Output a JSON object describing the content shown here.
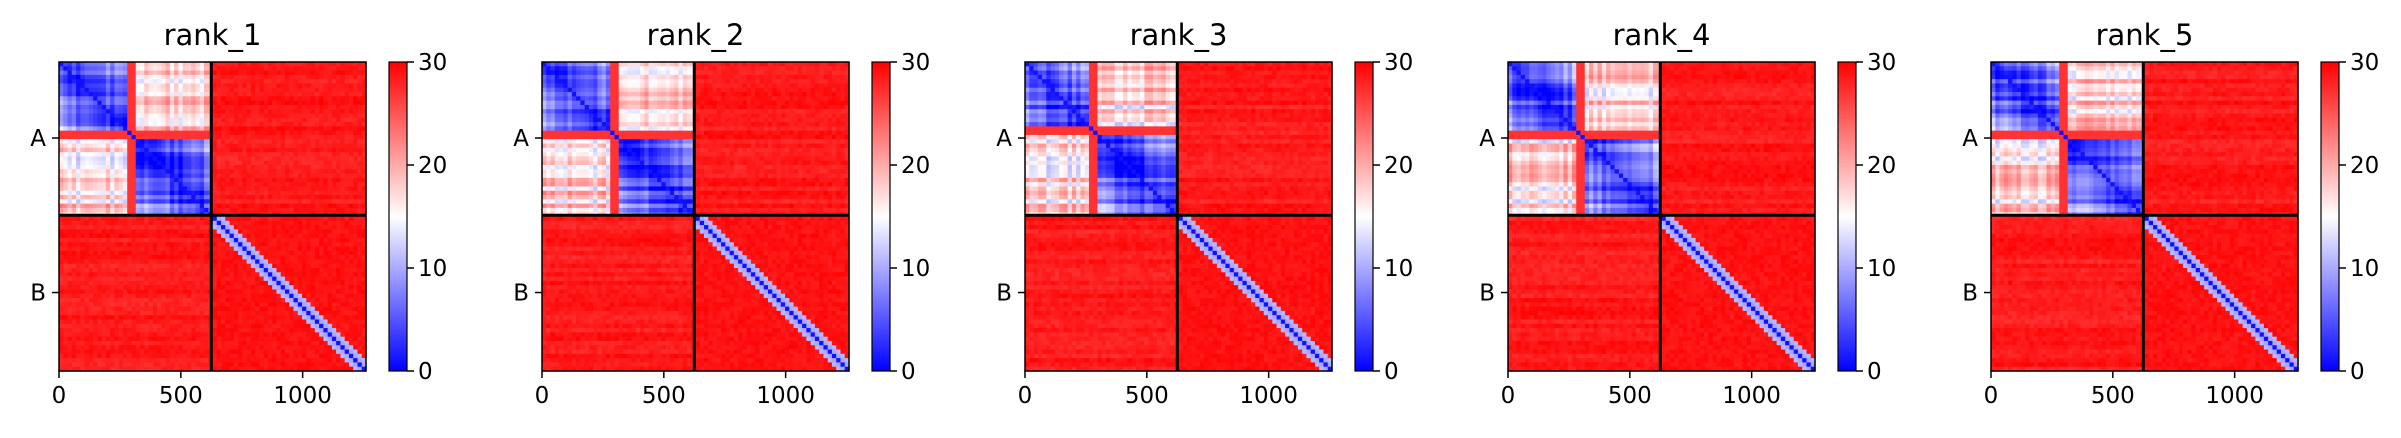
{
  "chart_data": [
    {
      "type": "heatmap",
      "title": "rank_1",
      "colormap": [
        "#0000ff",
        "#ffffff",
        "#ff0000"
      ],
      "value_range": [
        0,
        30
      ],
      "colorbar_ticks": [
        "0",
        "10",
        "20",
        "30"
      ],
      "x_ticks": [
        {
          "value": 0,
          "label": "0"
        },
        {
          "value": 500,
          "label": "500"
        },
        {
          "value": 1000,
          "label": "1000"
        }
      ],
      "y_ticks": [
        {
          "value": 310,
          "label": "A"
        },
        {
          "value": 940,
          "label": "B"
        }
      ],
      "xlim": [
        0,
        1260
      ],
      "chain_boundary": 625,
      "chain_a_split": 290,
      "n_residues": 1260
    },
    {
      "type": "heatmap",
      "title": "rank_2",
      "colormap": [
        "#0000ff",
        "#ffffff",
        "#ff0000"
      ],
      "value_range": [
        0,
        30
      ],
      "colorbar_ticks": [
        "0",
        "10",
        "20",
        "30"
      ],
      "x_ticks": [
        {
          "value": 0,
          "label": "0"
        },
        {
          "value": 500,
          "label": "500"
        },
        {
          "value": 1000,
          "label": "1000"
        }
      ],
      "y_ticks": [
        {
          "value": 310,
          "label": "A"
        },
        {
          "value": 940,
          "label": "B"
        }
      ],
      "xlim": [
        0,
        1260
      ],
      "chain_boundary": 625,
      "chain_a_split": 300,
      "n_residues": 1260
    },
    {
      "type": "heatmap",
      "title": "rank_3",
      "colormap": [
        "#0000ff",
        "#ffffff",
        "#ff0000"
      ],
      "value_range": [
        0,
        30
      ],
      "colorbar_ticks": [
        "0",
        "10",
        "20",
        "30"
      ],
      "x_ticks": [
        {
          "value": 0,
          "label": "0"
        },
        {
          "value": 500,
          "label": "500"
        },
        {
          "value": 1000,
          "label": "1000"
        }
      ],
      "y_ticks": [
        {
          "value": 310,
          "label": "A"
        },
        {
          "value": 940,
          "label": "B"
        }
      ],
      "xlim": [
        0,
        1260
      ],
      "chain_boundary": 625,
      "chain_a_split": 285,
      "n_residues": 1260
    },
    {
      "type": "heatmap",
      "title": "rank_4",
      "colormap": [
        "#0000ff",
        "#ffffff",
        "#ff0000"
      ],
      "value_range": [
        0,
        30
      ],
      "colorbar_ticks": [
        "0",
        "10",
        "20",
        "30"
      ],
      "x_ticks": [
        {
          "value": 0,
          "label": "0"
        },
        {
          "value": 500,
          "label": "500"
        },
        {
          "value": 1000,
          "label": "1000"
        }
      ],
      "y_ticks": [
        {
          "value": 310,
          "label": "A"
        },
        {
          "value": 940,
          "label": "B"
        }
      ],
      "xlim": [
        0,
        1260
      ],
      "chain_boundary": 625,
      "chain_a_split": 305,
      "n_residues": 1260
    },
    {
      "type": "heatmap",
      "title": "rank_5",
      "colormap": [
        "#0000ff",
        "#ffffff",
        "#ff0000"
      ],
      "value_range": [
        0,
        30
      ],
      "colorbar_ticks": [
        "0",
        "10",
        "20",
        "30"
      ],
      "x_ticks": [
        {
          "value": 0,
          "label": "0"
        },
        {
          "value": 500,
          "label": "500"
        },
        {
          "value": 1000,
          "label": "1000"
        }
      ],
      "y_ticks": [
        {
          "value": 310,
          "label": "A"
        },
        {
          "value": 940,
          "label": "B"
        }
      ],
      "xlim": [
        0,
        1260
      ],
      "chain_boundary": 625,
      "chain_a_split": 290,
      "n_residues": 1260
    }
  ]
}
